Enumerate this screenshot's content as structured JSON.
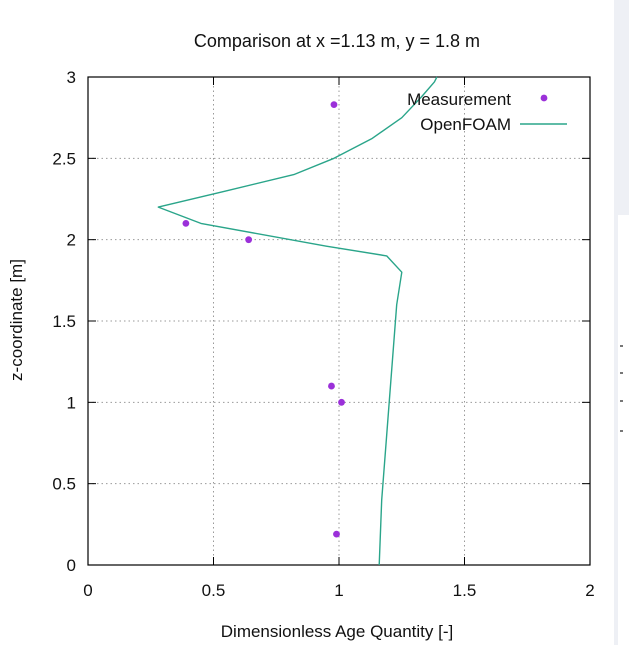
{
  "chart_data": {
    "type": "line",
    "title": "Comparison at x =1.13 m, y = 1.8 m",
    "xlabel": "Dimensionless Age Quantity [-]",
    "ylabel": "z-coordinate [m]",
    "xlim": [
      0,
      2
    ],
    "ylim": [
      0,
      3
    ],
    "xticks": [
      "0",
      "0.5",
      "1",
      "1.5",
      "2"
    ],
    "yticks": [
      "0",
      "0.5",
      "1",
      "1.5",
      "2",
      "2.5",
      "3"
    ],
    "grid": true,
    "legend_position": "top-right",
    "series": [
      {
        "name": "Measurement",
        "kind": "scatter",
        "color": "#9b30d9",
        "points": [
          {
            "x": 0.98,
            "y": 2.83
          },
          {
            "x": 0.39,
            "y": 2.1
          },
          {
            "x": 0.64,
            "y": 2.0
          },
          {
            "x": 0.97,
            "y": 1.1
          },
          {
            "x": 1.01,
            "y": 1.0
          },
          {
            "x": 0.99,
            "y": 0.19
          }
        ]
      },
      {
        "name": "OpenFOAM",
        "kind": "line",
        "color": "#2aa58a",
        "points": [
          {
            "x": 1.16,
            "y": 0.0
          },
          {
            "x": 1.17,
            "y": 0.4
          },
          {
            "x": 1.19,
            "y": 0.8
          },
          {
            "x": 1.21,
            "y": 1.2
          },
          {
            "x": 1.23,
            "y": 1.6
          },
          {
            "x": 1.25,
            "y": 1.8
          },
          {
            "x": 1.19,
            "y": 1.9
          },
          {
            "x": 0.95,
            "y": 1.96
          },
          {
            "x": 0.45,
            "y": 2.1
          },
          {
            "x": 0.28,
            "y": 2.2
          },
          {
            "x": 0.55,
            "y": 2.3
          },
          {
            "x": 0.82,
            "y": 2.4
          },
          {
            "x": 0.98,
            "y": 2.5
          },
          {
            "x": 1.13,
            "y": 2.62
          },
          {
            "x": 1.25,
            "y": 2.75
          },
          {
            "x": 1.33,
            "y": 2.88
          },
          {
            "x": 1.38,
            "y": 2.97
          },
          {
            "x": 1.39,
            "y": 3.0
          }
        ]
      }
    ]
  }
}
